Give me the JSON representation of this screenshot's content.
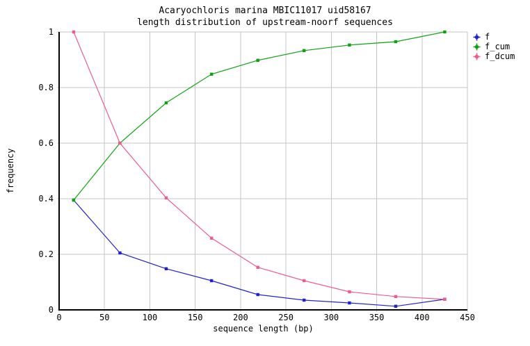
{
  "chart_data": {
    "type": "line",
    "title": "Acaryochloris marina MBIC11017 uid58167",
    "subtitle": "length distribution of upstream-noorf sequences",
    "xlabel": "sequence length (bp)",
    "ylabel": "frequency",
    "xlim": [
      0,
      450
    ],
    "ylim": [
      0,
      1
    ],
    "xticks": [
      0,
      50,
      100,
      150,
      200,
      250,
      300,
      350,
      400,
      450
    ],
    "yticks": [
      0,
      0.2,
      0.4,
      0.6,
      0.8,
      1
    ],
    "grid": true,
    "legend_position": "outside-top-right",
    "x": [
      16,
      67,
      118,
      168,
      219,
      270,
      320,
      371,
      425
    ],
    "series": [
      {
        "name": "f",
        "color": "#2222CC",
        "marker": "square",
        "values": [
          0.395,
          0.205,
          0.148,
          0.105,
          0.055,
          0.035,
          0.025,
          0.013,
          0.038
        ]
      },
      {
        "name": "f_cum",
        "color": "#0CA30F",
        "marker": "square",
        "values": [
          0.395,
          0.6,
          0.745,
          0.848,
          0.898,
          0.933,
          0.953,
          0.965,
          1.0
        ]
      },
      {
        "name": "f_dcum",
        "color": "#EE5C8C",
        "marker": "square",
        "values": [
          1.0,
          0.6,
          0.403,
          0.258,
          0.153,
          0.105,
          0.065,
          0.048,
          0.038
        ]
      }
    ],
    "colors": {
      "background": "#FFFFFF",
      "axis": "#000000",
      "grid": "#C4C4C4",
      "text": "#000000"
    }
  }
}
